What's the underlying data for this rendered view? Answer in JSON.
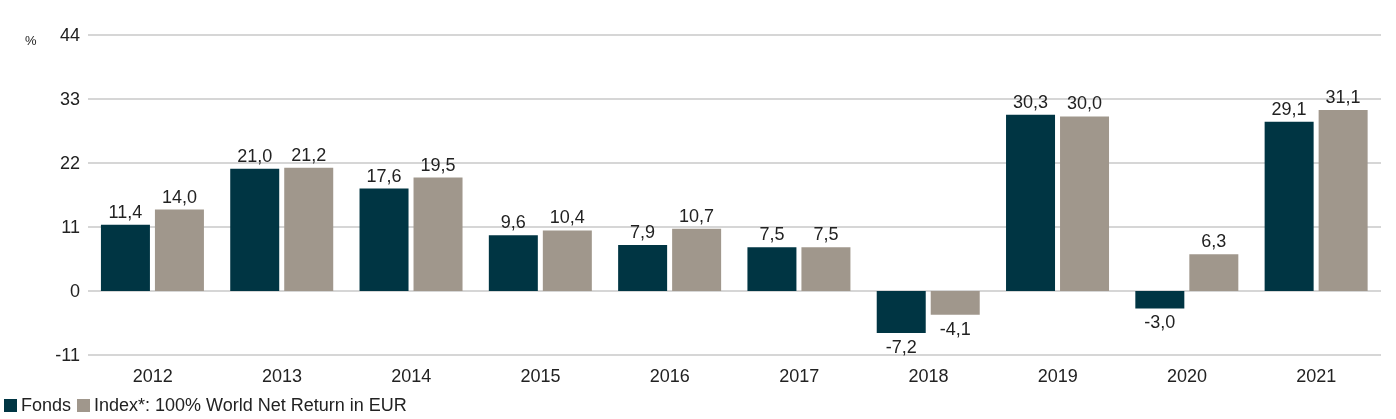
{
  "chart_data": {
    "type": "bar",
    "ylabel": "%",
    "categories": [
      "2012",
      "2013",
      "2014",
      "2015",
      "2016",
      "2017",
      "2018",
      "2019",
      "2020",
      "2021"
    ],
    "series": [
      {
        "name": "Fonds",
        "color": "#003543",
        "values": [
          11.4,
          21.0,
          17.6,
          9.6,
          7.9,
          7.5,
          -7.2,
          30.3,
          -3.0,
          29.1
        ],
        "value_labels": [
          "11,4",
          "21,0",
          "17,6",
          "9,6",
          "7,9",
          "7,5",
          "-7,2",
          "30,3",
          "-3,0",
          "29,1"
        ]
      },
      {
        "name": "Index*: 100% World Net Return in EUR",
        "color": "#a0978c",
        "values": [
          14.0,
          21.2,
          19.5,
          10.4,
          10.7,
          7.5,
          -4.1,
          30.0,
          6.3,
          31.1
        ],
        "value_labels": [
          "14,0",
          "21,2",
          "19,5",
          "10,4",
          "10,7",
          "7,5",
          "-4,1",
          "30,0",
          "6,3",
          "31,1"
        ]
      }
    ],
    "ylim": [
      -11,
      44
    ],
    "yticks": [
      -11,
      0,
      11,
      22,
      33,
      44
    ],
    "grid": "y",
    "legend": "bottom left"
  }
}
